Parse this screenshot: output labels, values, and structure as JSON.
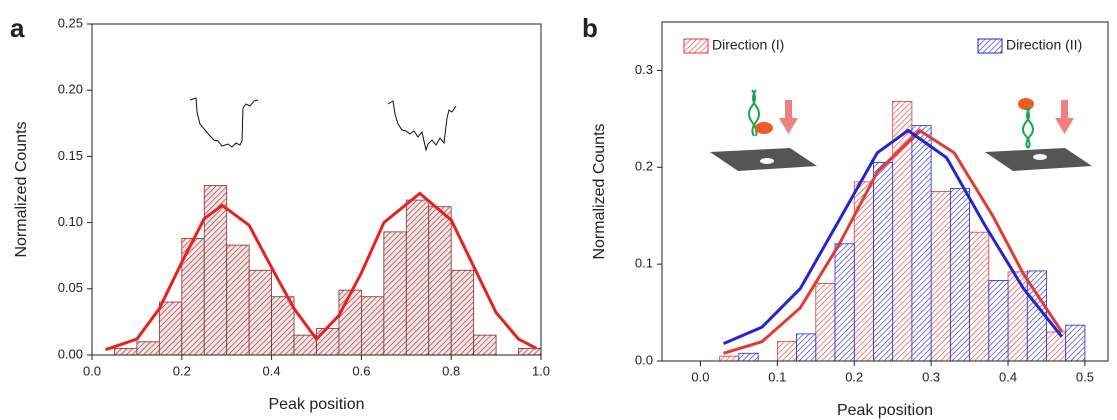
{
  "chart_data": [
    {
      "type": "histogram",
      "panel_label": "a",
      "x_label": "Peak position",
      "y_label": "Normalized Counts",
      "bins": [
        0.05,
        0.1,
        0.15,
        0.2,
        0.25,
        0.3,
        0.35,
        0.4,
        0.45,
        0.5,
        0.55,
        0.6,
        0.65,
        0.7,
        0.75,
        0.8,
        0.85,
        0.9,
        0.95,
        1.0
      ],
      "values": [
        0.005,
        0.01,
        0.04,
        0.088,
        0.128,
        0.083,
        0.064,
        0.044,
        0.015,
        0.02,
        0.049,
        0.044,
        0.093,
        0.117,
        0.112,
        0.064,
        0.015,
        0,
        0.005
      ],
      "color": "#8b2a2a",
      "fit": {
        "color": "#e8201e",
        "x": [
          0.03,
          0.1,
          0.15,
          0.2,
          0.25,
          0.29,
          0.35,
          0.4,
          0.45,
          0.5,
          0.55,
          0.6,
          0.65,
          0.73,
          0.8,
          0.85,
          0.9,
          0.95,
          0.99
        ],
        "values": [
          0.004,
          0.012,
          0.035,
          0.07,
          0.103,
          0.113,
          0.098,
          0.066,
          0.035,
          0.012,
          0.03,
          0.062,
          0.1,
          0.122,
          0.102,
          0.067,
          0.032,
          0.012,
          0.005
        ]
      },
      "xlim": [
        0,
        1.0
      ],
      "ylim": [
        0,
        0.25
      ],
      "xticks": [
        {
          "value": 0,
          "label": "0.0"
        },
        0.2,
        0.4,
        0.6,
        0.8,
        {
          "value": 1.0,
          "label": "1.0"
        }
      ],
      "yticks": [
        {
          "value": 0,
          "label": "0.00"
        },
        0.05,
        {
          "value": 0.1,
          "label": "0.10"
        },
        0.15,
        {
          "value": 0.2,
          "label": "0.20"
        },
        0.25
      ]
    },
    {
      "type": "histogram",
      "panel_label": "b",
      "x_label": "Peak position",
      "y_label": "Normalized Counts",
      "series": [
        {
          "name": "Direction (I)",
          "color": "#e23a34",
          "bins": [
            0.025,
            0.05,
            0.075,
            0.1,
            0.125,
            0.15,
            0.175,
            0.2,
            0.225,
            0.25,
            0.275,
            0.3,
            0.325,
            0.35,
            0.375,
            0.4,
            0.425,
            0.45,
            0.475,
            0.5
          ],
          "values": [
            0.005,
            0,
            0,
            0.02,
            0,
            0.08,
            0,
            0.185,
            0,
            0.268,
            0,
            0.175,
            0,
            0.133,
            0,
            0.092,
            0,
            0.03,
            0
          ],
          "fit": {
            "x": [
              0.03,
              0.08,
              0.13,
              0.18,
              0.23,
              0.285,
              0.33,
              0.38,
              0.42,
              0.47
            ],
            "values": [
              0.008,
              0.02,
              0.055,
              0.12,
              0.195,
              0.238,
              0.215,
              0.15,
              0.09,
              0.03
            ]
          }
        },
        {
          "name": "Direction (II)",
          "color": "#2424d0",
          "bins": [
            0.025,
            0.05,
            0.075,
            0.1,
            0.125,
            0.15,
            0.175,
            0.2,
            0.225,
            0.25,
            0.275,
            0.3,
            0.325,
            0.35,
            0.375,
            0.4,
            0.425,
            0.45,
            0.475,
            0.5
          ],
          "values": [
            0,
            0.008,
            0,
            0,
            0.028,
            0,
            0.121,
            0,
            0.205,
            0,
            0.243,
            0,
            0.178,
            0,
            0.083,
            0,
            0.093,
            0,
            0.037
          ],
          "fit": {
            "x": [
              0.03,
              0.08,
              0.13,
              0.18,
              0.23,
              0.27,
              0.32,
              0.37,
              0.42,
              0.47
            ],
            "values": [
              0.018,
              0.035,
              0.075,
              0.145,
              0.215,
              0.238,
              0.21,
              0.14,
              0.075,
              0.025
            ]
          }
        }
      ],
      "xlim": [
        -0.05,
        0.53
      ],
      "ylim": [
        0,
        0.35
      ],
      "xticks": [
        {
          "value": 0,
          "label": "0.0"
        },
        0.1,
        0.2,
        0.3,
        0.4,
        0.5
      ],
      "yticks": [
        {
          "value": 0,
          "label": "0.0"
        },
        0.1,
        0.2,
        0.3
      ]
    }
  ]
}
